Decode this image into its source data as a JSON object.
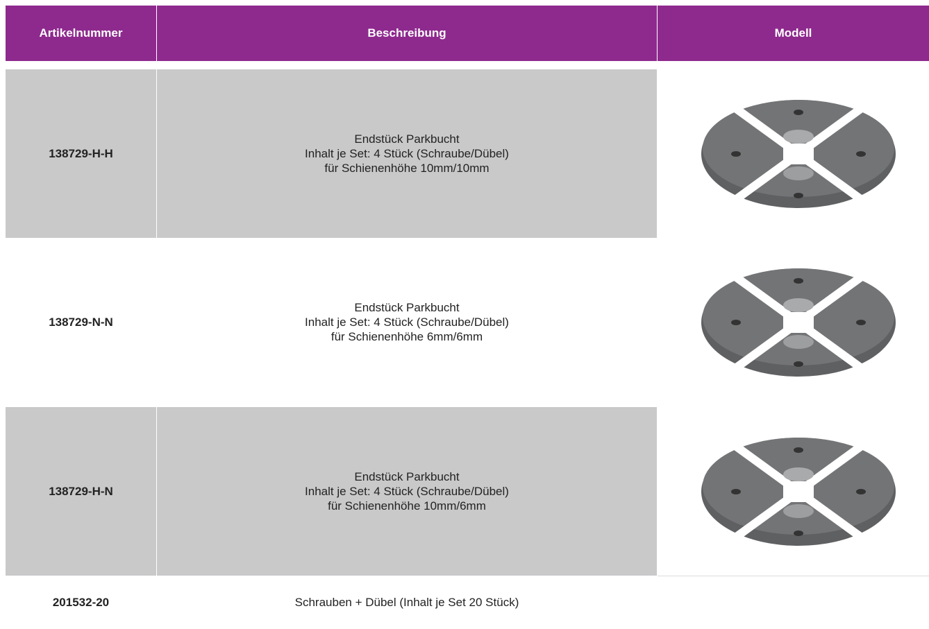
{
  "table": {
    "header": [
      "Artikelnummer",
      "Beschreibung",
      "Modell"
    ],
    "rows": [
      {
        "article": "138729-H-H",
        "description": [
          "Endstück Parkbucht",
          "Inhalt je Set: 4 Stück (Schraube/Dübel)",
          "für Schienenhöhe 10mm/10mm"
        ]
      },
      {
        "article": "138729-N-N",
        "description": [
          "Endstück Parkbucht",
          "Inhalt je Set: 4 Stück (Schraube/Dübel)",
          "für Schienenhöhe 6mm/6mm"
        ]
      },
      {
        "article": "138729-H-N",
        "description": [
          "Endstück Parkbucht",
          "Inhalt je Set: 4 Stück (Schraube/Dübel)",
          "für Schienenhöhe 10mm/6mm"
        ]
      },
      {
        "article": "201532-20",
        "description": [
          "Schrauben + Dübel (Inhalt je Set 20 Stück)"
        ]
      }
    ]
  }
}
